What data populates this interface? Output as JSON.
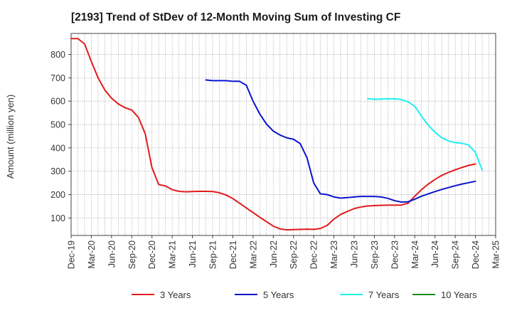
{
  "chart_data": {
    "type": "line",
    "title": "[2193]  Trend of StDev of 12-Month Moving Sum of Investing CF",
    "ylabel": "Amount (million yen)",
    "xlabel": "",
    "ylim": [
      25,
      890
    ],
    "yticks": [
      100,
      200,
      300,
      400,
      500,
      600,
      700,
      800
    ],
    "xlim": [
      "2019-12",
      "2025-03"
    ],
    "xticks": [
      "Dec-19",
      "Mar-20",
      "Jun-20",
      "Sep-20",
      "Dec-20",
      "Mar-21",
      "Jun-21",
      "Sep-21",
      "Dec-21",
      "Mar-22",
      "Jun-22",
      "Sep-22",
      "Dec-22",
      "Mar-23",
      "Jun-23",
      "Sep-23",
      "Dec-23",
      "Mar-24",
      "Jun-24",
      "Sep-24",
      "Dec-24",
      "Mar-25"
    ],
    "grid": true,
    "legend_position": "bottom",
    "series": [
      {
        "name": "3 Years",
        "color": "#e31a1c",
        "start": "2019-12",
        "values": [
          868,
          868,
          845,
          770,
          700,
          648,
          613,
          588,
          572,
          562,
          530,
          460,
          315,
          243,
          237,
          221,
          214,
          212,
          213,
          214,
          214,
          213,
          208,
          198,
          183,
          163,
          143,
          123,
          103,
          84,
          65,
          53,
          49,
          50,
          51,
          52,
          51,
          55,
          68,
          95,
          115,
          128,
          140,
          147,
          151,
          153,
          154,
          155,
          155,
          155,
          163,
          193,
          221,
          245,
          265,
          282,
          295,
          306,
          316,
          325,
          331
        ]
      },
      {
        "name": "5 Years",
        "color": "#0a14cc",
        "start": "2021-08",
        "values": [
          691,
          688,
          688,
          688,
          685,
          685,
          668,
          600,
          545,
          502,
          472,
          455,
          443,
          437,
          418,
          358,
          250,
          203,
          200,
          190,
          185,
          187,
          190,
          192,
          192,
          192,
          190,
          184,
          174,
          168,
          169,
          180,
          193,
          203,
          213,
          222,
          230,
          238,
          245,
          251,
          257
        ]
      },
      {
        "name": "7 Years",
        "color": "#1ef0f0",
        "start": "2023-08",
        "values": [
          611,
          608,
          609,
          610,
          610,
          607,
          597,
          578,
          535,
          497,
          467,
          443,
          430,
          422,
          420,
          412,
          380,
          305
        ]
      },
      {
        "name": "10 Years",
        "color": "#1a8c1a",
        "start": "2024-12",
        "values": []
      }
    ]
  }
}
